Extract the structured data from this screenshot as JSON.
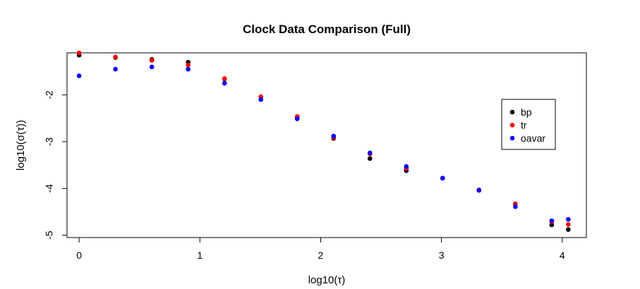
{
  "chart_data": {
    "type": "scatter",
    "title": "Clock Data Comparison (Full)",
    "xlabel": "log10(τ)",
    "ylabel": "log10(σ(τ))",
    "xlim": [
      -0.1,
      4.2
    ],
    "ylim": [
      -5.05,
      -1.1
    ],
    "xticks": [
      0,
      1,
      2,
      3,
      4
    ],
    "yticks": [
      -2,
      -3,
      -4,
      -5
    ],
    "grid": false,
    "legend_position": "right",
    "series": [
      {
        "name": "bp",
        "color": "#000000",
        "x": [
          0,
          0.301,
          0.602,
          0.903,
          1.204,
          1.505,
          1.806,
          2.107,
          2.408,
          2.709,
          3.01,
          3.311,
          3.612,
          3.913,
          4.05
        ],
        "y": [
          -1.15,
          -1.2,
          -1.24,
          -1.3,
          -1.66,
          -2.04,
          -2.48,
          -2.93,
          -3.36,
          -3.62,
          -3.78,
          -4.04,
          -4.33,
          -4.78,
          -4.88
        ]
      },
      {
        "name": "tr",
        "color": "#ff0000",
        "x": [
          0,
          0.301,
          0.602,
          0.903,
          1.204,
          1.505,
          1.806,
          2.107,
          2.408,
          2.709,
          3.01,
          3.311,
          3.612,
          3.913,
          4.05
        ],
        "y": [
          -1.1,
          -1.19,
          -1.26,
          -1.36,
          -1.65,
          -2.04,
          -2.46,
          -2.91,
          -3.26,
          -3.57,
          -3.78,
          -4.03,
          -4.34,
          -4.71,
          -4.77
        ]
      },
      {
        "name": "oavar",
        "color": "#0000ff",
        "x": [
          0,
          0.301,
          0.602,
          0.903,
          1.204,
          1.505,
          1.806,
          2.107,
          2.408,
          2.709,
          3.01,
          3.311,
          3.612,
          3.913,
          4.05
        ],
        "y": [
          -1.59,
          -1.45,
          -1.4,
          -1.45,
          -1.75,
          -2.1,
          -2.51,
          -2.88,
          -3.24,
          -3.53,
          -3.78,
          -4.04,
          -4.39,
          -4.69,
          -4.66
        ]
      }
    ]
  }
}
